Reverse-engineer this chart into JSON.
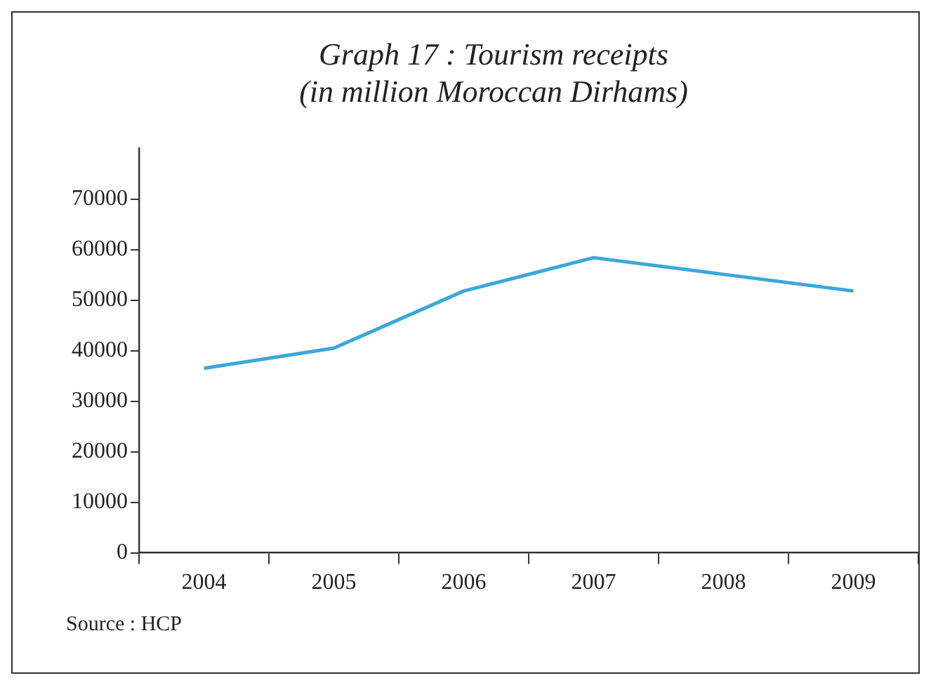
{
  "chart_data": {
    "type": "line",
    "title": "Graph 17 : Tourism receipts\n(in million Moroccan Dirhams)",
    "categories": [
      "2004",
      "2005",
      "2006",
      "2007",
      "2008",
      "2009"
    ],
    "series": [
      {
        "color": "#3aa8dc",
        "values": [
          36500,
          40500,
          51800,
          58400,
          55100,
          51800
        ]
      }
    ],
    "ylim": [
      0,
      80000
    ],
    "yticks": [
      0,
      10000,
      20000,
      30000,
      40000,
      50000,
      60000,
      70000
    ],
    "grid": false,
    "legend": false,
    "marker": "none",
    "line_style": "solid",
    "annotations": [
      "Source : HCP"
    ]
  }
}
